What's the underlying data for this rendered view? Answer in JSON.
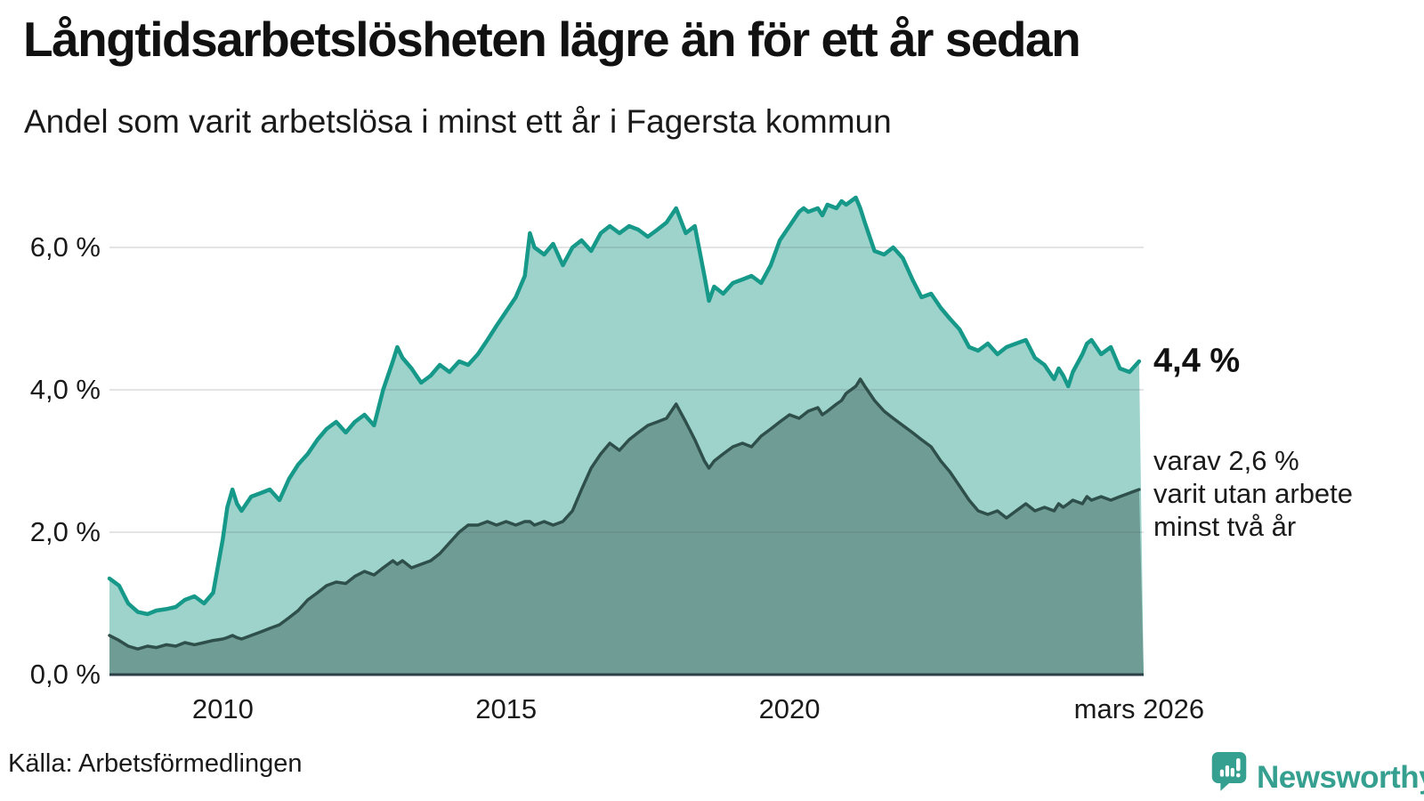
{
  "header": {
    "title": "Långtidsarbetslösheten lägre än för ett år sedan",
    "subtitle": "Andel som varit arbetslösa i minst ett år i Fagersta kommun"
  },
  "annotations": {
    "latest_value": "4,4 %",
    "subseries_note": "varav 2,6 %\nvarit utan arbete\nminst två år"
  },
  "footer": {
    "source": "Källa: Arbetsförmedlingen",
    "brand": "Newsworthy",
    "brand_color": "#35a08f"
  },
  "chart_data": {
    "type": "area",
    "title": "Långtidsarbetslösheten lägre än för ett år sedan",
    "subtitle": "Andel som varit arbetslösa i minst ett år i Fagersta kommun",
    "unit": "%",
    "grid": "horizontal",
    "legend_position": "right-annotations",
    "xlim": [
      2008.0,
      2026.25
    ],
    "ylim": [
      0,
      6.9
    ],
    "axis_color": "#2c3e46",
    "grid_color": "rgba(90,90,105,0.16)",
    "xticks": [
      {
        "year": 2010,
        "label": "2010"
      },
      {
        "year": 2015,
        "label": "2015"
      },
      {
        "year": 2020,
        "label": "2020"
      },
      {
        "year": 2026.17,
        "label": "mars 2026"
      }
    ],
    "yticks": [
      {
        "value": 0,
        "label": "0,0 %"
      },
      {
        "value": 2,
        "label": "2,0 %"
      },
      {
        "value": 4,
        "label": "4,0 %"
      },
      {
        "value": 6,
        "label": "6,0 %"
      }
    ],
    "x": [
      2008.0,
      2008.17,
      2008.33,
      2008.5,
      2008.67,
      2008.83,
      2009.0,
      2009.17,
      2009.33,
      2009.5,
      2009.67,
      2009.83,
      2010.0,
      2010.08,
      2010.17,
      2010.25,
      2010.33,
      2010.5,
      2010.67,
      2010.83,
      2011.0,
      2011.17,
      2011.33,
      2011.5,
      2011.67,
      2011.83,
      2012.0,
      2012.17,
      2012.33,
      2012.5,
      2012.67,
      2012.83,
      2013.0,
      2013.08,
      2013.17,
      2013.33,
      2013.5,
      2013.67,
      2013.83,
      2014.0,
      2014.17,
      2014.33,
      2014.5,
      2014.67,
      2014.83,
      2015.0,
      2015.17,
      2015.33,
      2015.42,
      2015.5,
      2015.67,
      2015.83,
      2016.0,
      2016.17,
      2016.33,
      2016.5,
      2016.67,
      2016.83,
      2017.0,
      2017.17,
      2017.33,
      2017.5,
      2017.67,
      2017.83,
      2018.0,
      2018.17,
      2018.33,
      2018.5,
      2018.58,
      2018.67,
      2018.83,
      2019.0,
      2019.17,
      2019.33,
      2019.5,
      2019.67,
      2019.83,
      2020.0,
      2020.17,
      2020.25,
      2020.33,
      2020.5,
      2020.58,
      2020.67,
      2020.83,
      2020.92,
      2021.0,
      2021.17,
      2021.25,
      2021.33,
      2021.5,
      2021.67,
      2021.83,
      2022.0,
      2022.17,
      2022.33,
      2022.5,
      2022.67,
      2022.83,
      2023.0,
      2023.17,
      2023.33,
      2023.5,
      2023.67,
      2023.83,
      2024.0,
      2024.17,
      2024.33,
      2024.5,
      2024.67,
      2024.75,
      2024.83,
      2024.92,
      2025.0,
      2025.17,
      2025.25,
      2025.33,
      2025.5,
      2025.67,
      2025.83,
      2026.0,
      2026.17
    ],
    "series": [
      {
        "name": "arbetslösa minst ett år",
        "end_label": "4,4 %",
        "end_value": 4.4,
        "line_color": "#17998a",
        "fill_color": "#9ed3cc",
        "values": [
          1.35,
          1.25,
          1.0,
          0.88,
          0.85,
          0.9,
          0.92,
          0.95,
          1.05,
          1.1,
          1.0,
          1.15,
          1.9,
          2.35,
          2.6,
          2.4,
          2.3,
          2.5,
          2.55,
          2.6,
          2.45,
          2.75,
          2.95,
          3.1,
          3.3,
          3.45,
          3.55,
          3.4,
          3.55,
          3.65,
          3.5,
          4.0,
          4.4,
          4.6,
          4.45,
          4.3,
          4.1,
          4.2,
          4.35,
          4.25,
          4.4,
          4.35,
          4.5,
          4.7,
          4.9,
          5.1,
          5.3,
          5.6,
          6.2,
          6.0,
          5.9,
          6.05,
          5.75,
          6.0,
          6.1,
          5.95,
          6.2,
          6.3,
          6.2,
          6.3,
          6.25,
          6.15,
          6.25,
          6.35,
          6.55,
          6.2,
          6.3,
          5.6,
          5.25,
          5.45,
          5.35,
          5.5,
          5.55,
          5.6,
          5.5,
          5.75,
          6.1,
          6.3,
          6.5,
          6.55,
          6.5,
          6.55,
          6.45,
          6.6,
          6.55,
          6.65,
          6.6,
          6.7,
          6.55,
          6.35,
          5.95,
          5.9,
          6.0,
          5.85,
          5.55,
          5.3,
          5.35,
          5.15,
          5.0,
          4.85,
          4.6,
          4.55,
          4.65,
          4.5,
          4.6,
          4.65,
          4.7,
          4.45,
          4.35,
          4.15,
          4.3,
          4.2,
          4.05,
          4.25,
          4.5,
          4.65,
          4.7,
          4.5,
          4.6,
          4.3,
          4.25,
          4.4
        ]
      },
      {
        "name": "varit utan arbete minst två år",
        "end_label": "varav 2,6 %",
        "end_value": 2.6,
        "line_color": "#2f4f4b",
        "fill_color": "#6f9d96",
        "values": [
          0.55,
          0.48,
          0.4,
          0.36,
          0.4,
          0.38,
          0.42,
          0.4,
          0.45,
          0.42,
          0.45,
          0.48,
          0.5,
          0.52,
          0.55,
          0.52,
          0.5,
          0.55,
          0.6,
          0.65,
          0.7,
          0.8,
          0.9,
          1.05,
          1.15,
          1.25,
          1.3,
          1.28,
          1.38,
          1.45,
          1.4,
          1.5,
          1.6,
          1.55,
          1.6,
          1.5,
          1.55,
          1.6,
          1.7,
          1.85,
          2.0,
          2.1,
          2.1,
          2.15,
          2.1,
          2.15,
          2.1,
          2.15,
          2.15,
          2.1,
          2.15,
          2.1,
          2.15,
          2.3,
          2.6,
          2.9,
          3.1,
          3.25,
          3.15,
          3.3,
          3.4,
          3.5,
          3.55,
          3.6,
          3.8,
          3.55,
          3.3,
          3.0,
          2.9,
          3.0,
          3.1,
          3.2,
          3.25,
          3.2,
          3.35,
          3.45,
          3.55,
          3.65,
          3.6,
          3.65,
          3.7,
          3.75,
          3.65,
          3.7,
          3.8,
          3.85,
          3.95,
          4.05,
          4.15,
          4.05,
          3.85,
          3.7,
          3.6,
          3.5,
          3.4,
          3.3,
          3.2,
          3.0,
          2.85,
          2.65,
          2.45,
          2.3,
          2.25,
          2.3,
          2.2,
          2.3,
          2.4,
          2.3,
          2.35,
          2.3,
          2.4,
          2.35,
          2.4,
          2.45,
          2.4,
          2.5,
          2.45,
          2.5,
          2.45,
          2.5,
          2.55,
          2.6
        ]
      }
    ]
  }
}
